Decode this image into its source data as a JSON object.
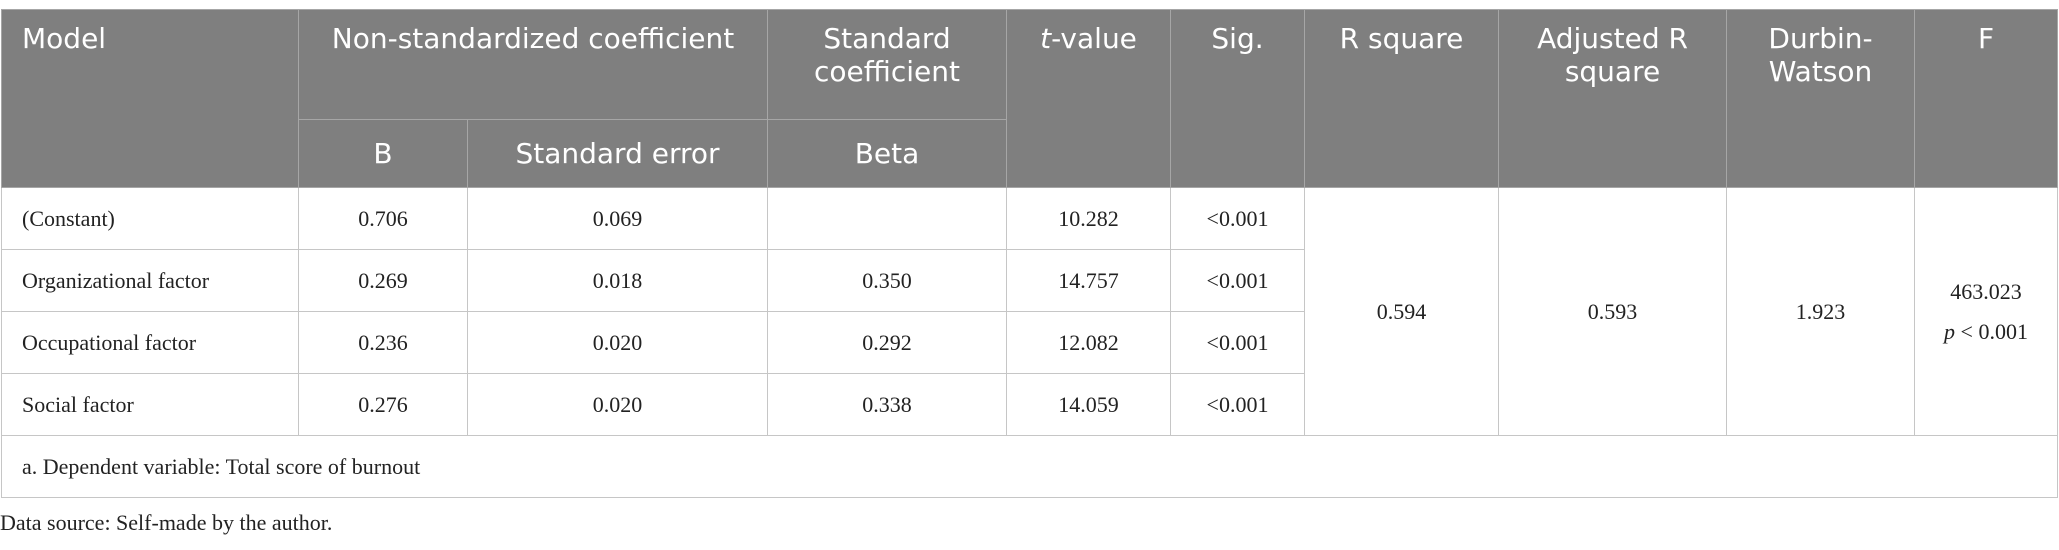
{
  "header": {
    "model": "Model",
    "nonstd": "Non-standardized coefficient",
    "std": "Standard coefficient",
    "t_italic": "t",
    "t_rest": "-value",
    "sig": "Sig.",
    "r_square": "R square",
    "adj_r_square": "Adjusted R square",
    "durbin_watson": "Durbin-Watson",
    "f": "F",
    "b": "B",
    "std_error": "Standard error",
    "beta": "Beta"
  },
  "table": {
    "rows": [
      [
        "(Constant)",
        "0.706",
        "0.069",
        null,
        "10.282",
        "<0.001"
      ],
      [
        "Organizational factor",
        "0.269",
        "0.018",
        "0.350",
        "14.757",
        "<0.001"
      ],
      [
        "Occupational factor",
        "0.236",
        "0.020",
        "0.292",
        "12.082",
        "<0.001"
      ],
      [
        "Social factor",
        "0.276",
        "0.020",
        "0.338",
        "14.059",
        "<0.001"
      ]
    ],
    "r_square": "0.594",
    "adj_r_square": "0.593",
    "durbin_watson": "1.923",
    "f": "463.023",
    "f_p_italic": "p",
    "f_p_rest": " < 0.001"
  },
  "note": "a. Dependent variable: Total score of burnout",
  "source": "Data source: Self-made by the author."
}
